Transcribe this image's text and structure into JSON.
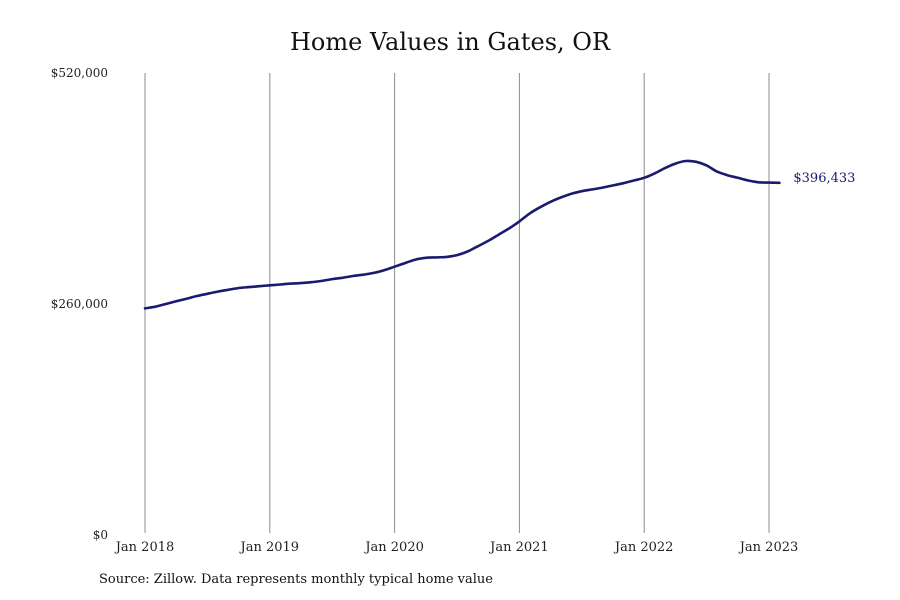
{
  "chart_data": {
    "type": "line",
    "title": "Home Values in Gates, OR",
    "source": "Source: Zillow. Data represents monthly typical home value",
    "xlabel": "",
    "ylabel": "",
    "ylim": [
      0,
      520000
    ],
    "y_ticks": [
      {
        "value": 0,
        "label": "$0"
      },
      {
        "value": 260000,
        "label": "$260,000"
      },
      {
        "value": 520000,
        "label": "$520,000"
      }
    ],
    "x_ticks": [
      {
        "value": 2018,
        "label": "Jan 2018"
      },
      {
        "value": 2019,
        "label": "Jan 2019"
      },
      {
        "value": 2020,
        "label": "Jan 2020"
      },
      {
        "value": 2021,
        "label": "Jan 2021"
      },
      {
        "value": 2022,
        "label": "Jan 2022"
      },
      {
        "value": 2023,
        "label": "Jan 2023"
      }
    ],
    "grid": {
      "vertical": true,
      "horizontal": false
    },
    "line_color": "#1a1a6e",
    "end_label": "$396,433",
    "series": [
      {
        "x": [
          "2018-01",
          "2018-02",
          "2018-03",
          "2018-04",
          "2018-05",
          "2018-06",
          "2018-07",
          "2018-08",
          "2018-09",
          "2018-10",
          "2018-11",
          "2018-12",
          "2019-01",
          "2019-02",
          "2019-03",
          "2019-04",
          "2019-05",
          "2019-06",
          "2019-07",
          "2019-08",
          "2019-09",
          "2019-10",
          "2019-11",
          "2019-12",
          "2020-01",
          "2020-02",
          "2020-03",
          "2020-04",
          "2020-05",
          "2020-06",
          "2020-07",
          "2020-08",
          "2020-09",
          "2020-10",
          "2020-11",
          "2020-12",
          "2021-01",
          "2021-02",
          "2021-03",
          "2021-04",
          "2021-05",
          "2021-06",
          "2021-07",
          "2021-08",
          "2021-09",
          "2021-10",
          "2021-11",
          "2021-12",
          "2022-01",
          "2022-02",
          "2022-03",
          "2022-04",
          "2022-05",
          "2022-06",
          "2022-07",
          "2022-08",
          "2022-09",
          "2022-10",
          "2022-11",
          "2022-12",
          "2023-01",
          "2023-02"
        ],
        "y": [
          255000,
          257000,
          260000,
          263000,
          266000,
          269000,
          271500,
          274000,
          276000,
          278000,
          279000,
          280000,
          281000,
          282000,
          283000,
          283500,
          284500,
          286000,
          288000,
          289500,
          291500,
          293000,
          295000,
          298000,
          302000,
          306000,
          310000,
          312000,
          312500,
          313000,
          315000,
          319000,
          325000,
          331000,
          338000,
          345000,
          353000,
          362000,
          369000,
          375000,
          380000,
          384000,
          387000,
          389000,
          391000,
          393500,
          396000,
          399000,
          402000,
          407000,
          413000,
          418000,
          421000,
          420000,
          416000,
          409000,
          405000,
          402000,
          399000,
          397000,
          396600,
          396433
        ]
      }
    ]
  }
}
